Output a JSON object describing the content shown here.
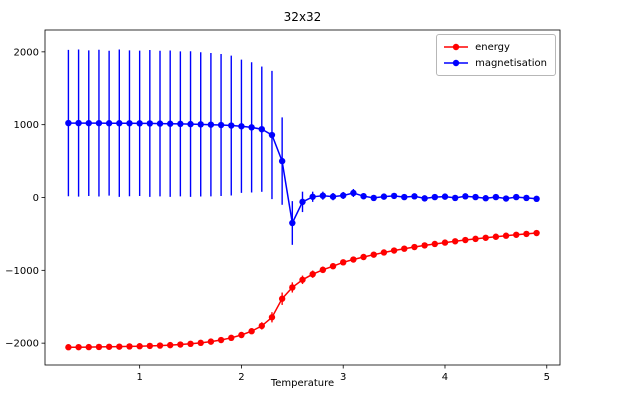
{
  "figure": {
    "title": "32x32",
    "xlabel": "Temperature"
  },
  "chart_data": {
    "type": "line",
    "title": "32x32",
    "xlabel": "Temperature",
    "ylabel": "",
    "xlim": [
      0.07,
      5.13
    ],
    "ylim": [
      -2300,
      2300
    ],
    "xticks": [
      1,
      2,
      3,
      4,
      5
    ],
    "yticks": [
      -2000,
      -1000,
      0,
      1000,
      2000
    ],
    "grid": false,
    "legend_position": "upper right",
    "x": [
      0.3,
      0.4,
      0.5,
      0.6,
      0.7,
      0.8,
      0.9,
      1.0,
      1.1,
      1.2,
      1.3,
      1.4,
      1.5,
      1.6,
      1.7,
      1.8,
      1.9,
      2.0,
      2.1,
      2.2,
      2.3,
      2.4,
      2.5,
      2.6,
      2.7,
      2.8,
      2.9,
      3.0,
      3.1,
      3.2,
      3.3,
      3.4,
      3.5,
      3.6,
      3.7,
      3.8,
      3.9,
      4.0,
      4.1,
      4.2,
      4.3,
      4.4,
      4.5,
      4.6,
      4.7,
      4.8,
      4.9
    ],
    "series": [
      {
        "name": "energy",
        "color": "#ff0000",
        "values": [
          -2056,
          -2055,
          -2054,
          -2052,
          -2050,
          -2048,
          -2045,
          -2042,
          -2038,
          -2033,
          -2027,
          -2019,
          -2009,
          -1996,
          -1979,
          -1957,
          -1927,
          -1888,
          -1836,
          -1763,
          -1645,
          -1390,
          -1235,
          -1130,
          -1053,
          -993,
          -943,
          -890,
          -852,
          -817,
          -785,
          -755,
          -728,
          -703,
          -680,
          -658,
          -638,
          -619,
          -601,
          -584,
          -568,
          -553,
          -539,
          -525,
          -512,
          -500,
          -488
        ],
        "yerr": [
          5,
          5,
          5,
          5,
          6,
          6,
          6,
          7,
          7,
          8,
          8,
          9,
          10,
          12,
          15,
          19,
          24,
          30,
          38,
          50,
          70,
          85,
          70,
          58,
          50,
          45,
          40,
          37,
          34,
          32,
          30,
          29,
          28,
          27,
          26,
          25,
          24,
          23,
          23,
          22,
          22,
          21,
          21,
          20,
          20,
          20,
          19
        ]
      },
      {
        "name": "magnetisation",
        "color": "#0000ff",
        "values": [
          1022,
          1022,
          1021,
          1021,
          1020,
          1020,
          1019,
          1018,
          1017,
          1015,
          1013,
          1011,
          1008,
          1004,
          1000,
          995,
          988,
          978,
          963,
          938,
          858,
          500,
          -350,
          -60,
          10,
          25,
          12,
          28,
          62,
          18,
          -6,
          12,
          22,
          6,
          16,
          -12,
          6,
          12,
          -6,
          16,
          6,
          -10,
          6,
          -14,
          6,
          -6,
          -18
        ],
        "yerr": [
          1005,
          1010,
          1000,
          1008,
          995,
          1012,
          1002,
          998,
          1008,
          1000,
          1005,
          996,
          1000,
          990,
          985,
          975,
          960,
          915,
          895,
          860,
          880,
          600,
          300,
          140,
          70,
          55,
          50,
          48,
          55,
          42,
          40,
          38,
          36,
          34,
          33,
          32,
          30,
          30,
          28,
          28,
          26,
          26,
          25,
          24,
          24,
          23,
          22
        ]
      }
    ]
  }
}
